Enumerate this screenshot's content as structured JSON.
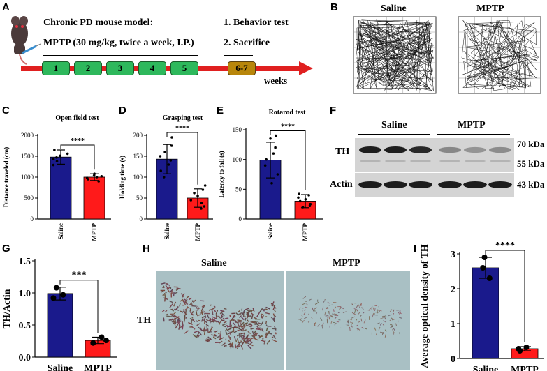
{
  "panels": {
    "A": "A",
    "B": "B",
    "C": "C",
    "D": "D",
    "E": "E",
    "F": "F",
    "G": "G",
    "H": "H",
    "I": "I"
  },
  "panel_a": {
    "model_title": "Chronic PD mouse model:",
    "treatment": "MPTP (30 mg/kg, twice a week, I.P.)",
    "steps": [
      "1. Behavior test",
      "2. Sacrifice"
    ],
    "weeks": [
      "1",
      "2",
      "3",
      "4",
      "5"
    ],
    "final_week": "6-7",
    "axis_label": "weeks"
  },
  "panel_b": {
    "left_title": "Saline",
    "right_title": "MPTP"
  },
  "panel_f": {
    "group_labels": [
      "Saline",
      "MPTP"
    ],
    "row_labels": [
      "TH",
      "Actin"
    ],
    "size_labels": [
      "70 kDa",
      "55 kDa",
      "43 kDa"
    ]
  },
  "panel_h": {
    "left_title": "Saline",
    "right_title": "MPTP",
    "row_label": "TH"
  },
  "colors": {
    "saline": "#1a1a8c",
    "mptp": "#ff1a1a",
    "timeline": "#e02020",
    "week_box": "#2eb85c",
    "final_box": "#b8860b"
  },
  "chart_data": [
    {
      "id": "C",
      "type": "bar",
      "title": "Open field test",
      "xlabel": "",
      "ylabel": "Distance traveled (cm)",
      "categories": [
        "Saline",
        "MPTP"
      ],
      "values": [
        1480,
        1000
      ],
      "errors": [
        170,
        80
      ],
      "ylim": [
        0,
        2000
      ],
      "yticks": [
        "0",
        "500",
        "1000",
        "1500",
        "2000"
      ],
      "significance": "****",
      "points": [
        [
          1290,
          1380,
          1430,
          1470,
          1510,
          1560,
          1650
        ],
        [
          900,
          950,
          980,
          1000,
          1020,
          1040,
          1080
        ]
      ]
    },
    {
      "id": "D",
      "type": "bar",
      "title": "Grasping test",
      "xlabel": "",
      "ylabel": "Holding time (s)",
      "categories": [
        "Saline",
        "MPTP"
      ],
      "values": [
        143,
        50
      ],
      "errors": [
        35,
        22
      ],
      "ylim": [
        0,
        200
      ],
      "yticks": [
        "0",
        "50",
        "100",
        "150",
        "200"
      ],
      "significance": "****",
      "points": [
        [
          100,
          115,
          130,
          140,
          150,
          160,
          175,
          195
        ],
        [
          25,
          30,
          38,
          45,
          55,
          62,
          70,
          80
        ]
      ]
    },
    {
      "id": "E",
      "type": "bar",
      "title": "Rotarod test",
      "xlabel": "",
      "ylabel": "Latency to fall (s)",
      "categories": [
        "Saline",
        "MPTP"
      ],
      "values": [
        99,
        30
      ],
      "errors": [
        30,
        11
      ],
      "ylim": [
        0,
        150
      ],
      "yticks": [
        "0",
        "50",
        "100",
        "150"
      ],
      "significance": "****",
      "points": [
        [
          60,
          75,
          90,
          100,
          110,
          120,
          135,
          140
        ],
        [
          20,
          22,
          25,
          30,
          33,
          36,
          40,
          42
        ]
      ]
    },
    {
      "id": "G",
      "type": "bar",
      "title": "",
      "xlabel": "",
      "ylabel": "TH/Actin",
      "categories": [
        "Saline",
        "MPTP"
      ],
      "values": [
        0.99,
        0.26
      ],
      "errors": [
        0.1,
        0.05
      ],
      "ylim": [
        0,
        1.5
      ],
      "yticks": [
        "0.0",
        "0.5",
        "1.0",
        "1.5"
      ],
      "significance": "***",
      "points": [
        [
          0.92,
          0.97,
          1.08
        ],
        [
          0.22,
          0.26,
          0.31
        ]
      ]
    },
    {
      "id": "I",
      "type": "bar",
      "title": "",
      "xlabel": "",
      "ylabel": "Average optical density of TH",
      "categories": [
        "Saline",
        "MPTP"
      ],
      "values": [
        2.6,
        0.28
      ],
      "errors": [
        0.3,
        0.06
      ],
      "ylim": [
        0,
        3
      ],
      "yticks": [
        "0",
        "1",
        "2",
        "3"
      ],
      "significance": "****",
      "points": [
        [
          2.3,
          2.6,
          2.9
        ],
        [
          0.22,
          0.28,
          0.32
        ]
      ]
    }
  ]
}
